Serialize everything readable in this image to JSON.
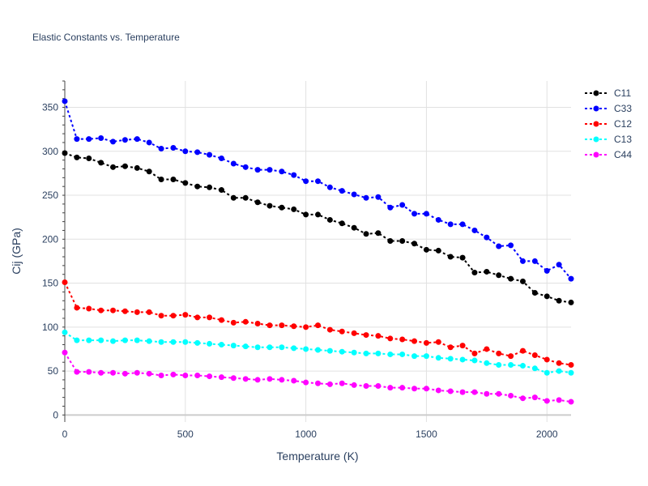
{
  "chart_data": {
    "type": "line",
    "title": "Elastic Constants vs. Temperature",
    "xlabel": "Temperature (K)",
    "ylabel": "Cij (GPa)",
    "xlim": [
      0,
      2100
    ],
    "ylim": [
      -8,
      380
    ],
    "x_ticks": [
      0,
      500,
      1000,
      1500,
      2000
    ],
    "y_ticks": [
      0,
      50,
      100,
      150,
      200,
      250,
      300,
      350
    ],
    "grid": true,
    "legend_position": "top-right",
    "x": [
      0,
      50,
      100,
      150,
      200,
      250,
      300,
      350,
      400,
      450,
      500,
      550,
      600,
      650,
      700,
      750,
      800,
      850,
      900,
      950,
      1000,
      1050,
      1100,
      1150,
      1200,
      1250,
      1300,
      1350,
      1400,
      1450,
      1500,
      1550,
      1600,
      1650,
      1700,
      1750,
      1800,
      1850,
      1900,
      1950,
      2000,
      2050,
      2100
    ],
    "series": [
      {
        "name": "C11",
        "color": "#000000",
        "values": [
          298,
          293,
          292,
          287,
          282,
          283,
          281,
          277,
          268,
          268,
          264,
          260,
          259,
          256,
          247,
          247,
          242,
          238,
          236,
          234,
          228,
          228,
          222,
          218,
          213,
          206,
          207,
          198,
          198,
          195,
          188,
          187,
          180,
          179,
          162,
          163,
          159,
          155,
          152,
          139,
          135,
          130,
          128
        ]
      },
      {
        "name": "C33",
        "color": "#0000ff",
        "values": [
          357,
          314,
          314,
          315,
          311,
          313,
          314,
          310,
          303,
          304,
          300,
          299,
          296,
          292,
          286,
          282,
          279,
          279,
          277,
          273,
          266,
          266,
          259,
          255,
          251,
          247,
          248,
          236,
          239,
          229,
          229,
          222,
          217,
          217,
          210,
          202,
          192,
          193,
          175,
          175,
          164,
          171,
          155
        ]
      },
      {
        "name": "C12",
        "color": "#ff0000",
        "values": [
          151,
          122,
          121,
          119,
          119,
          118,
          117,
          117,
          113,
          113,
          114,
          111,
          111,
          108,
          105,
          106,
          104,
          102,
          102,
          101,
          100,
          102,
          97,
          95,
          93,
          91,
          90,
          87,
          86,
          84,
          82,
          83,
          77,
          79,
          70,
          75,
          70,
          67,
          73,
          68,
          63,
          59,
          57
        ]
      },
      {
        "name": "C13",
        "color": "#00ffff",
        "values": [
          94,
          85,
          85,
          85,
          84,
          85,
          85,
          84,
          83,
          83,
          83,
          82,
          81,
          80,
          79,
          78,
          77,
          77,
          77,
          76,
          75,
          74,
          73,
          72,
          71,
          70,
          70,
          69,
          69,
          67,
          67,
          65,
          64,
          63,
          62,
          59,
          57,
          57,
          56,
          53,
          48,
          50,
          48
        ]
      },
      {
        "name": "C44",
        "color": "#ff00ff",
        "values": [
          71,
          49,
          49,
          48,
          48,
          47,
          48,
          47,
          45,
          46,
          45,
          45,
          44,
          43,
          42,
          41,
          40,
          41,
          40,
          39,
          37,
          36,
          35,
          36,
          34,
          33,
          33,
          31,
          31,
          30,
          30,
          28,
          27,
          26,
          26,
          24,
          24,
          22,
          19,
          20,
          16,
          17,
          15
        ]
      }
    ]
  }
}
